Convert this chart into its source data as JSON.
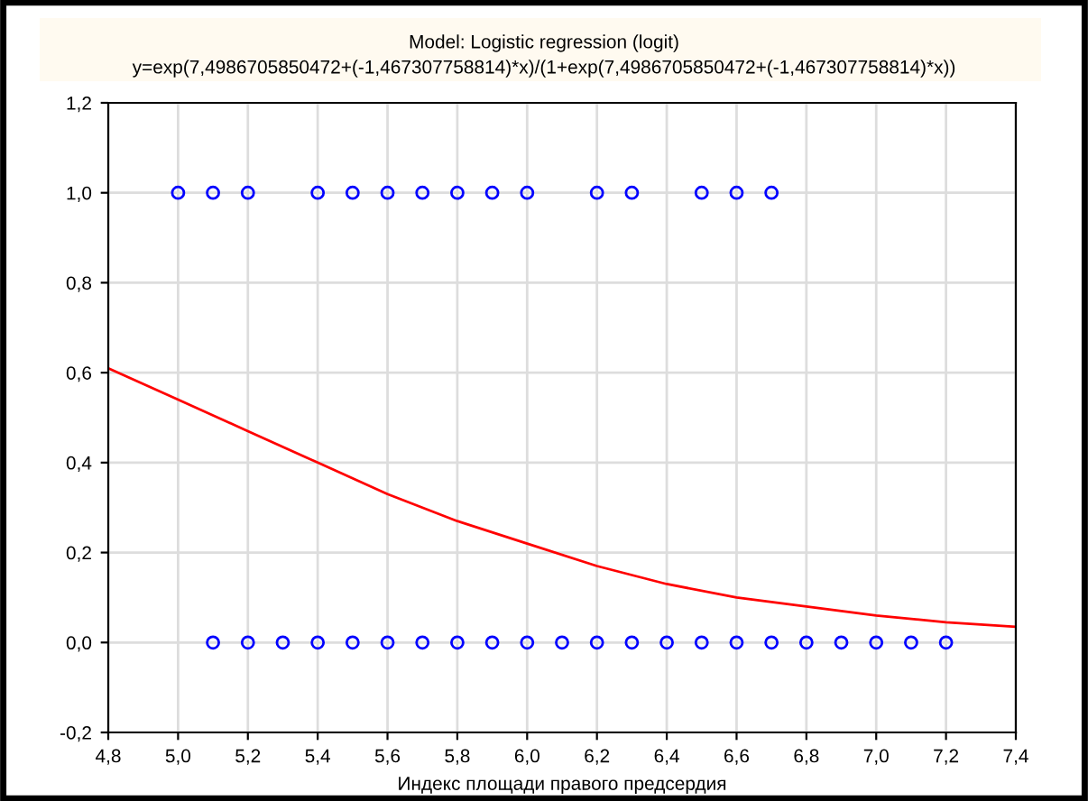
{
  "chart_data": {
    "type": "scatter",
    "title": "Model: Logistic regression (logit)",
    "subtitle": "y=exp(7,4986705850472+(-1,467307758814)*x)/(1+exp(7,4986705850472+(-1,467307758814)*x))",
    "xlabel": "Индекс площади правого предсердия",
    "series": [
      {
        "color": "#0000ff",
        "marker": "circle",
        "x": [
          5.0,
          5.1,
          5.2,
          5.4,
          5.5,
          5.6,
          5.7,
          5.8,
          5.9,
          6.0,
          6.2,
          6.3,
          6.5,
          6.6,
          6.7
        ],
        "values": [
          1,
          1,
          1,
          1,
          1,
          1,
          1,
          1,
          1,
          1,
          1,
          1,
          1,
          1,
          1
        ]
      },
      {
        "color": "#0000ff",
        "marker": "circle",
        "x": [
          5.1,
          5.2,
          5.3,
          5.4,
          5.5,
          5.6,
          5.7,
          5.8,
          5.9,
          6.0,
          6.1,
          6.2,
          6.3,
          6.4,
          6.5,
          6.6,
          6.7,
          6.8,
          6.9,
          7.0,
          7.1,
          7.2
        ],
        "values": [
          0,
          0,
          0,
          0,
          0,
          0,
          0,
          0,
          0,
          0,
          0,
          0,
          0,
          0,
          0,
          0,
          0,
          0,
          0,
          0,
          0,
          0
        ]
      },
      {
        "type": "line",
        "color": "#ff0000",
        "marker": "none",
        "x": [
          4.8,
          5.0,
          5.2,
          5.4,
          5.6,
          5.8,
          6.0,
          6.2,
          6.4,
          6.6,
          6.8,
          7.0,
          7.2,
          7.4
        ],
        "values": [
          0.61,
          0.54,
          0.47,
          0.4,
          0.33,
          0.27,
          0.22,
          0.17,
          0.13,
          0.1,
          0.08,
          0.06,
          0.045,
          0.035
        ]
      }
    ],
    "xlim": [
      4.8,
      7.4
    ],
    "xticks": [
      {
        "value": 4.8,
        "label": "4,8"
      },
      {
        "value": 5.0,
        "label": "5,0"
      },
      {
        "value": 5.2,
        "label": "5,2"
      },
      {
        "value": 5.4,
        "label": "5,4"
      },
      {
        "value": 5.6,
        "label": "5,6"
      },
      {
        "value": 5.8,
        "label": "5,8"
      },
      {
        "value": 6.0,
        "label": "6,0"
      },
      {
        "value": 6.2,
        "label": "6,2"
      },
      {
        "value": 6.4,
        "label": "6,4"
      },
      {
        "value": 6.6,
        "label": "6,6"
      },
      {
        "value": 6.8,
        "label": "6,8"
      },
      {
        "value": 7.0,
        "label": "7,0"
      },
      {
        "value": 7.2,
        "label": "7,2"
      },
      {
        "value": 7.4,
        "label": "7,4"
      }
    ],
    "ylim": [
      -0.2,
      1.2
    ],
    "yticks": [
      {
        "value": -0.2,
        "label": "-0,2"
      },
      {
        "value": 0,
        "label": "0,0"
      },
      {
        "value": 0.2,
        "label": "0,2"
      },
      {
        "value": 0.4,
        "label": "0,4"
      },
      {
        "value": 0.6,
        "label": "0,6"
      },
      {
        "value": 0.8,
        "label": "0,8"
      },
      {
        "value": 1.0,
        "label": "1,0"
      },
      {
        "value": 1.2,
        "label": "1,2"
      }
    ],
    "grid": true,
    "legend": false
  }
}
